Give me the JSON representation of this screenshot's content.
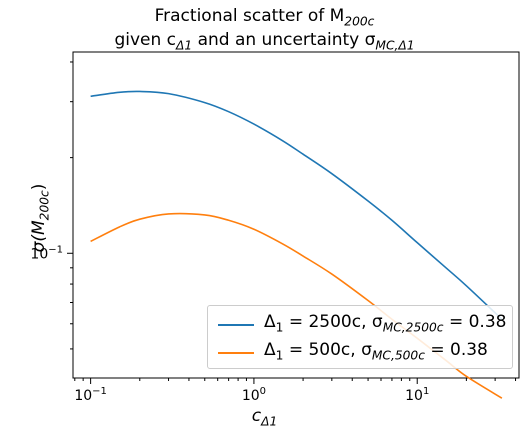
{
  "chart_data": {
    "type": "line",
    "title_line1": "Fractional scatter of M",
    "title_line1_sub": "200c",
    "title_line2": "given c",
    "title_line2_sub": "Δ1",
    "title_line2_mid": " and an uncertainty σ",
    "title_line2_sub2": "MC,Δ1",
    "xlabel": "c",
    "xlabel_sub": "Δ1",
    "ylabel": "σ(M",
    "ylabel_sub": "200c",
    "ylabel_end": ")",
    "xscale": "log",
    "yscale": "log",
    "xlim": [
      0.078,
      42
    ],
    "ylim": [
      0.0405,
      0.43
    ],
    "x_ticks": [
      {
        "value": 0.1,
        "label": "10",
        "exp": "−1"
      },
      {
        "value": 1,
        "label": "10",
        "exp": "0"
      },
      {
        "value": 10,
        "label": "10",
        "exp": "1"
      }
    ],
    "y_ticks": [
      {
        "value": 0.1,
        "label": "10",
        "exp": "−1"
      }
    ],
    "grid": false,
    "legend_position": "lower-right",
    "series": [
      {
        "name": "Δ1 = 2500c, σMC,2500c = 0.38",
        "color": "#1f77b4",
        "x": [
          0.1,
          0.15,
          0.2,
          0.3,
          0.5,
          0.7,
          1.0,
          1.5,
          2.0,
          3.0,
          5.0,
          7.0,
          10.0,
          15.0,
          20.0,
          33.0
        ],
        "y": [
          0.312,
          0.321,
          0.323,
          0.318,
          0.298,
          0.279,
          0.255,
          0.226,
          0.205,
          0.178,
          0.146,
          0.127,
          0.108,
          0.09,
          0.079,
          0.062
        ]
      },
      {
        "name": "Δ1 = 500c, σMC,500c = 0.38",
        "color": "#ff7f0e",
        "x": [
          0.1,
          0.15,
          0.2,
          0.3,
          0.5,
          0.7,
          1.0,
          1.5,
          2.0,
          3.0,
          5.0,
          7.0,
          10.0,
          15.0,
          20.0,
          33.0
        ],
        "y": [
          0.109,
          0.121,
          0.128,
          0.133,
          0.132,
          0.127,
          0.119,
          0.107,
          0.098,
          0.086,
          0.071,
          0.062,
          0.054,
          0.046,
          0.041,
          0.035
        ]
      }
    ]
  },
  "legend": {
    "entry1_pre": "Δ",
    "entry1_sub": "1",
    "entry1_mid": " = 2500c,  σ",
    "entry1_sub2": "MC,2500c",
    "entry1_end": " = 0.38",
    "entry2_pre": "Δ",
    "entry2_sub": "1",
    "entry2_mid": " = 500c,   σ",
    "entry2_sub2": "MC,500c",
    "entry2_end": " = 0.38"
  }
}
